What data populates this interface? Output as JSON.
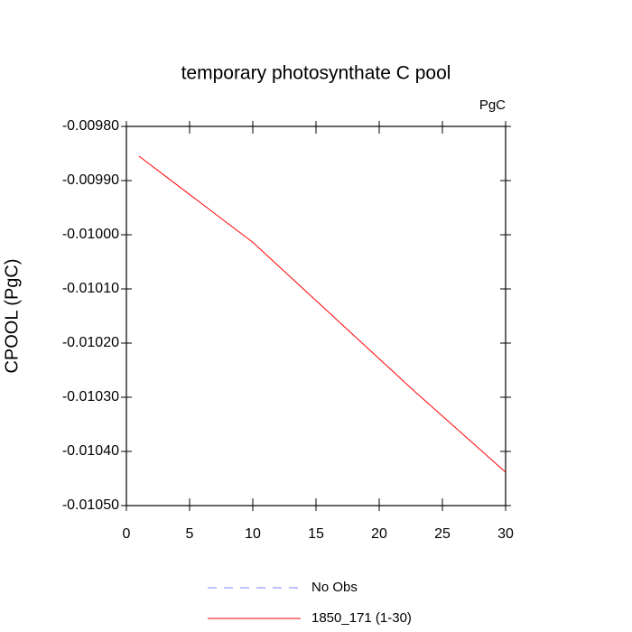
{
  "chart_data": {
    "type": "line",
    "title": "temporary photosynthate C pool",
    "units": "PgC",
    "y_label": "CPOOL  (PgC)",
    "x": [
      1,
      2,
      3,
      4,
      5,
      6,
      7,
      8,
      9,
      10,
      11,
      12,
      13,
      14,
      15,
      16,
      17,
      18,
      19,
      20,
      21,
      22,
      23,
      24,
      25,
      26,
      27,
      28,
      29,
      30
    ],
    "series": [
      {
        "name": "No Obs",
        "color": "#8080ff",
        "dash": true,
        "values": [
          null,
          null,
          null,
          null,
          null,
          null,
          null,
          null,
          null,
          null,
          null,
          null,
          null,
          null,
          null,
          null,
          null,
          null,
          null,
          null,
          null,
          null,
          null,
          null,
          null,
          null,
          null,
          null,
          null,
          null
        ]
      },
      {
        "name": "1850_171 (1-30)",
        "color": "#ff0000",
        "dash": false,
        "values": [
          -0.009855,
          -0.0098727,
          -0.0098903,
          -0.009908,
          -0.0099257,
          -0.0099433,
          -0.009961,
          -0.0099787,
          -0.0099963,
          -0.010014,
          -0.0100355,
          -0.010057,
          -0.0100785,
          -0.0101,
          -0.0101215,
          -0.010143,
          -0.0101645,
          -0.010186,
          -0.0102075,
          -0.010229,
          -0.0102505,
          -0.010272,
          -0.0102933,
          -0.010314,
          -0.0103348,
          -0.0103555,
          -0.0103762,
          -0.0103968,
          -0.0104177,
          -0.0104383
        ]
      }
    ],
    "xlim": [
      0,
      30
    ],
    "xticks": [
      0,
      5,
      10,
      15,
      20,
      25,
      30
    ],
    "ylim": [
      -0.0105,
      -0.0098
    ],
    "yticks": [
      {
        "value": -0.0105,
        "label": "-0.01050"
      },
      {
        "value": -0.0104,
        "label": "-0.01040"
      },
      {
        "value": -0.0103,
        "label": "-0.01030"
      },
      {
        "value": -0.0102,
        "label": "-0.01020"
      },
      {
        "value": -0.0101,
        "label": "-0.01010"
      },
      {
        "value": -0.01,
        "label": "-0.01000"
      },
      {
        "value": -0.0099,
        "label": "-0.00990"
      },
      {
        "value": -0.0098,
        "label": "-0.00980"
      }
    ],
    "grid": false
  }
}
